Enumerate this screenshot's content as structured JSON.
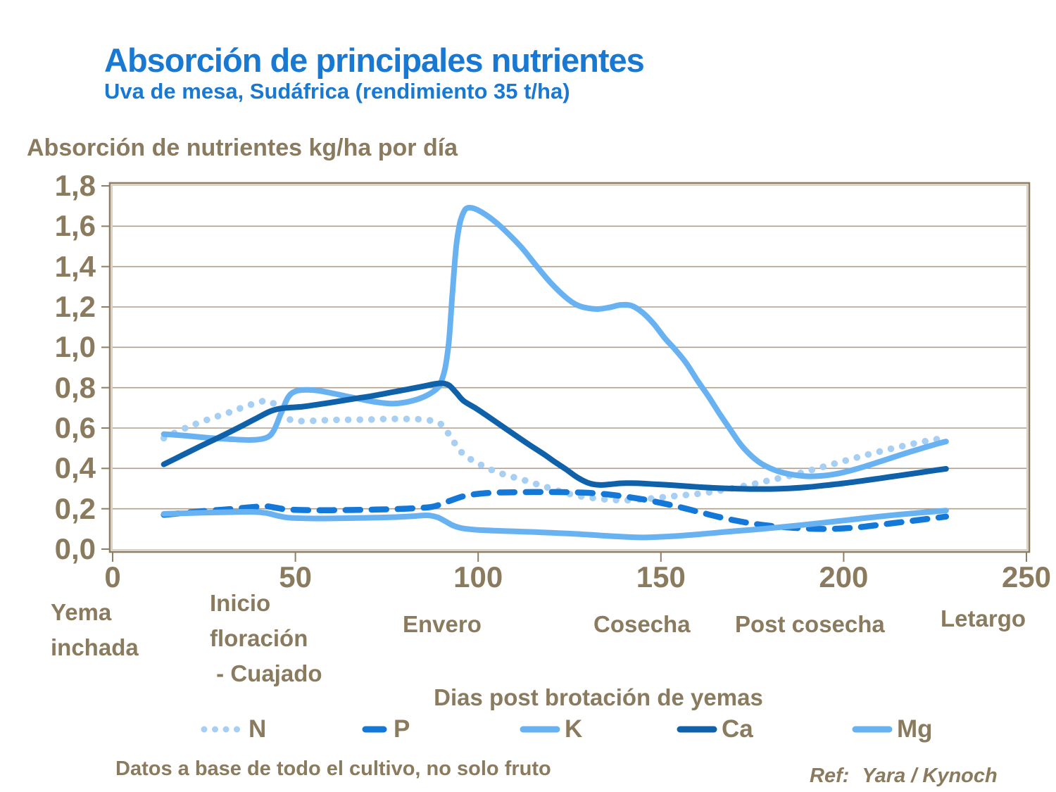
{
  "slide": {
    "title": "Absorción de principales nutrientes",
    "subtitle": "Uva de mesa, Sudáfrica (rendimiento 35 t/ha)",
    "footnote": "Datos a base de todo el cultivo, no solo fruto",
    "ref_label": "Ref:",
    "ref_value": "Yara / Kynoch",
    "title_color": "#1878d2",
    "text_color": "#8a7a5e"
  },
  "chart_data": {
    "type": "line",
    "ylabel": "Absorción de nutrientes kg/ha por día",
    "xlabel": "Dias post brotación de yemas",
    "xlim": [
      0,
      250
    ],
    "ylim": [
      0,
      1.8
    ],
    "grid": true,
    "legend_position": "bottom",
    "x_ticks": [
      0,
      50,
      100,
      150,
      200,
      250
    ],
    "x_tick_labels": [
      "0",
      "50",
      "100",
      "150",
      "200",
      "250"
    ],
    "y_ticks": [
      0,
      0.2,
      0.4,
      0.6,
      0.8,
      1.0,
      1.2,
      1.4,
      1.6,
      1.8
    ],
    "y_tick_labels": [
      "0,0",
      "0,2",
      "0,4",
      "0,6",
      "0,8",
      "1,0",
      "1,2",
      "1,4",
      "1,6",
      "1,8"
    ],
    "grid_color": "#ad9f8b",
    "border_dark": "#8e7f64",
    "border_light": "#d9d1c2",
    "stage_labels": [
      {
        "text": "Yema\ninchada"
      },
      {
        "text": "Inicio\nfloración\n - Cuajado"
      },
      {
        "text": "Envero"
      },
      {
        "text": "Cosecha"
      },
      {
        "text": "Post cosecha"
      },
      {
        "text": "Letargo"
      }
    ],
    "series": [
      {
        "name": "N",
        "style": "dotted",
        "color": "#a7cef3",
        "points": [
          [
            14,
            0.55
          ],
          [
            18,
            0.585
          ],
          [
            22,
            0.615
          ],
          [
            27,
            0.648
          ],
          [
            32,
            0.678
          ],
          [
            36,
            0.705
          ],
          [
            40,
            0.728
          ],
          [
            42,
            0.735
          ],
          [
            44,
            0.722
          ],
          [
            46,
            0.685
          ],
          [
            48,
            0.648
          ],
          [
            50,
            0.635
          ],
          [
            55,
            0.636
          ],
          [
            60,
            0.64
          ],
          [
            65,
            0.641
          ],
          [
            70,
            0.642
          ],
          [
            75,
            0.645
          ],
          [
            80,
            0.645
          ],
          [
            85,
            0.642
          ],
          [
            89,
            0.628
          ],
          [
            91,
            0.595
          ],
          [
            93,
            0.54
          ],
          [
            96,
            0.47
          ],
          [
            100,
            0.425
          ],
          [
            104,
            0.39
          ],
          [
            108,
            0.365
          ],
          [
            112,
            0.345
          ],
          [
            116,
            0.322
          ],
          [
            120,
            0.3
          ],
          [
            124,
            0.278
          ],
          [
            128,
            0.262
          ],
          [
            132,
            0.252
          ],
          [
            136,
            0.245
          ],
          [
            140,
            0.242
          ],
          [
            144,
            0.246
          ],
          [
            148,
            0.252
          ],
          [
            152,
            0.26
          ],
          [
            156,
            0.267
          ],
          [
            160,
            0.274
          ],
          [
            164,
            0.284
          ],
          [
            168,
            0.296
          ],
          [
            172,
            0.31
          ],
          [
            176,
            0.325
          ],
          [
            180,
            0.342
          ],
          [
            184,
            0.358
          ],
          [
            188,
            0.376
          ],
          [
            192,
            0.396
          ],
          [
            196,
            0.416
          ],
          [
            200,
            0.436
          ],
          [
            204,
            0.456
          ],
          [
            208,
            0.475
          ],
          [
            212,
            0.493
          ],
          [
            216,
            0.51
          ],
          [
            220,
            0.526
          ],
          [
            224,
            0.54
          ],
          [
            228,
            0.552
          ]
        ]
      },
      {
        "name": "P",
        "style": "dashed",
        "color": "#1478d8",
        "points": [
          [
            14,
            0.17
          ],
          [
            20,
            0.18
          ],
          [
            26,
            0.19
          ],
          [
            32,
            0.198
          ],
          [
            38,
            0.208
          ],
          [
            42,
            0.212
          ],
          [
            45,
            0.204
          ],
          [
            48,
            0.196
          ],
          [
            54,
            0.193
          ],
          [
            60,
            0.193
          ],
          [
            66,
            0.194
          ],
          [
            72,
            0.196
          ],
          [
            78,
            0.199
          ],
          [
            84,
            0.204
          ],
          [
            88,
            0.212
          ],
          [
            92,
            0.238
          ],
          [
            96,
            0.262
          ],
          [
            100,
            0.274
          ],
          [
            105,
            0.28
          ],
          [
            110,
            0.282
          ],
          [
            115,
            0.283
          ],
          [
            120,
            0.283
          ],
          [
            125,
            0.282
          ],
          [
            130,
            0.279
          ],
          [
            135,
            0.272
          ],
          [
            140,
            0.261
          ],
          [
            145,
            0.247
          ],
          [
            150,
            0.229
          ],
          [
            155,
            0.209
          ],
          [
            160,
            0.186
          ],
          [
            165,
            0.163
          ],
          [
            170,
            0.143
          ],
          [
            175,
            0.127
          ],
          [
            180,
            0.115
          ],
          [
            185,
            0.107
          ],
          [
            190,
            0.102
          ],
          [
            195,
            0.1
          ],
          [
            200,
            0.103
          ],
          [
            205,
            0.11
          ],
          [
            210,
            0.121
          ],
          [
            215,
            0.132
          ],
          [
            220,
            0.143
          ],
          [
            224,
            0.152
          ],
          [
            228,
            0.161
          ]
        ]
      },
      {
        "name": "K",
        "style": "solid",
        "color": "#68b2f2",
        "points": [
          [
            14,
            0.57
          ],
          [
            20,
            0.562
          ],
          [
            26,
            0.552
          ],
          [
            32,
            0.545
          ],
          [
            38,
            0.541
          ],
          [
            42,
            0.552
          ],
          [
            44,
            0.585
          ],
          [
            46,
            0.67
          ],
          [
            48,
            0.752
          ],
          [
            50,
            0.782
          ],
          [
            53,
            0.789
          ],
          [
            57,
            0.783
          ],
          [
            62,
            0.765
          ],
          [
            67,
            0.746
          ],
          [
            72,
            0.729
          ],
          [
            77,
            0.721
          ],
          [
            82,
            0.735
          ],
          [
            86,
            0.762
          ],
          [
            89,
            0.8
          ],
          [
            90,
            0.835
          ],
          [
            91,
            0.9
          ],
          [
            92,
            1.03
          ],
          [
            93,
            1.28
          ],
          [
            94,
            1.5
          ],
          [
            95,
            1.615
          ],
          [
            96,
            1.668
          ],
          [
            97,
            1.69
          ],
          [
            99,
            1.687
          ],
          [
            102,
            1.658
          ],
          [
            105,
            1.617
          ],
          [
            108,
            1.567
          ],
          [
            112,
            1.492
          ],
          [
            116,
            1.402
          ],
          [
            120,
            1.317
          ],
          [
            124,
            1.247
          ],
          [
            127,
            1.21
          ],
          [
            130,
            1.194
          ],
          [
            133,
            1.19
          ],
          [
            136,
            1.198
          ],
          [
            139,
            1.21
          ],
          [
            142,
            1.206
          ],
          [
            145,
            1.172
          ],
          [
            148,
            1.117
          ],
          [
            151,
            1.047
          ],
          [
            154,
            0.987
          ],
          [
            157,
            0.92
          ],
          [
            160,
            0.835
          ],
          [
            163,
            0.757
          ],
          [
            166,
            0.672
          ],
          [
            169,
            0.592
          ],
          [
            172,
            0.515
          ],
          [
            175,
            0.458
          ],
          [
            178,
            0.418
          ],
          [
            182,
            0.386
          ],
          [
            186,
            0.369
          ],
          [
            190,
            0.361
          ],
          [
            194,
            0.363
          ],
          [
            198,
            0.373
          ],
          [
            202,
            0.39
          ],
          [
            206,
            0.411
          ],
          [
            210,
            0.434
          ],
          [
            214,
            0.458
          ],
          [
            218,
            0.481
          ],
          [
            222,
            0.503
          ],
          [
            226,
            0.524
          ],
          [
            228,
            0.533
          ]
        ]
      },
      {
        "name": "Ca",
        "style": "solid",
        "color": "#0f61a9",
        "points": [
          [
            14,
            0.42
          ],
          [
            19,
            0.465
          ],
          [
            24,
            0.51
          ],
          [
            29,
            0.553
          ],
          [
            34,
            0.598
          ],
          [
            39,
            0.645
          ],
          [
            43,
            0.682
          ],
          [
            46,
            0.697
          ],
          [
            49,
            0.702
          ],
          [
            52,
            0.706
          ],
          [
            56,
            0.716
          ],
          [
            61,
            0.73
          ],
          [
            66,
            0.745
          ],
          [
            71,
            0.759
          ],
          [
            76,
            0.776
          ],
          [
            81,
            0.793
          ],
          [
            85,
            0.807
          ],
          [
            88,
            0.818
          ],
          [
            90,
            0.822
          ],
          [
            92,
            0.812
          ],
          [
            94,
            0.775
          ],
          [
            96,
            0.735
          ],
          [
            99,
            0.702
          ],
          [
            102,
            0.666
          ],
          [
            106,
            0.616
          ],
          [
            110,
            0.566
          ],
          [
            114,
            0.517
          ],
          [
            118,
            0.47
          ],
          [
            121,
            0.432
          ],
          [
            124,
            0.396
          ],
          [
            127,
            0.357
          ],
          [
            130,
            0.329
          ],
          [
            133,
            0.318
          ],
          [
            136,
            0.321
          ],
          [
            139,
            0.326
          ],
          [
            142,
            0.327
          ],
          [
            145,
            0.325
          ],
          [
            149,
            0.321
          ],
          [
            153,
            0.317
          ],
          [
            157,
            0.312
          ],
          [
            161,
            0.307
          ],
          [
            165,
            0.303
          ],
          [
            170,
            0.3
          ],
          [
            175,
            0.298
          ],
          [
            180,
            0.298
          ],
          [
            185,
            0.301
          ],
          [
            190,
            0.307
          ],
          [
            195,
            0.316
          ],
          [
            200,
            0.326
          ],
          [
            205,
            0.338
          ],
          [
            210,
            0.351
          ],
          [
            215,
            0.364
          ],
          [
            220,
            0.377
          ],
          [
            224,
            0.388
          ],
          [
            228,
            0.398
          ]
        ]
      },
      {
        "name": "Mg",
        "style": "solid",
        "color": "#68b2f2",
        "points": [
          [
            14,
            0.175
          ],
          [
            20,
            0.178
          ],
          [
            26,
            0.181
          ],
          [
            32,
            0.183
          ],
          [
            38,
            0.185
          ],
          [
            42,
            0.179
          ],
          [
            45,
            0.166
          ],
          [
            48,
            0.156
          ],
          [
            54,
            0.152
          ],
          [
            60,
            0.152
          ],
          [
            66,
            0.154
          ],
          [
            72,
            0.156
          ],
          [
            78,
            0.159
          ],
          [
            82,
            0.163
          ],
          [
            85,
            0.167
          ],
          [
            87,
            0.166
          ],
          [
            89,
            0.157
          ],
          [
            91,
            0.138
          ],
          [
            93,
            0.118
          ],
          [
            95,
            0.106
          ],
          [
            97,
            0.1
          ],
          [
            100,
            0.095
          ],
          [
            105,
            0.091
          ],
          [
            110,
            0.088
          ],
          [
            115,
            0.085
          ],
          [
            120,
            0.081
          ],
          [
            125,
            0.077
          ],
          [
            130,
            0.072
          ],
          [
            135,
            0.066
          ],
          [
            140,
            0.061
          ],
          [
            145,
            0.058
          ],
          [
            150,
            0.061
          ],
          [
            155,
            0.066
          ],
          [
            160,
            0.073
          ],
          [
            165,
            0.081
          ],
          [
            170,
            0.089
          ],
          [
            175,
            0.096
          ],
          [
            180,
            0.104
          ],
          [
            185,
            0.113
          ],
          [
            190,
            0.122
          ],
          [
            195,
            0.132
          ],
          [
            200,
            0.142
          ],
          [
            205,
            0.152
          ],
          [
            210,
            0.162
          ],
          [
            215,
            0.171
          ],
          [
            220,
            0.179
          ],
          [
            224,
            0.185
          ],
          [
            228,
            0.191
          ]
        ]
      }
    ]
  }
}
